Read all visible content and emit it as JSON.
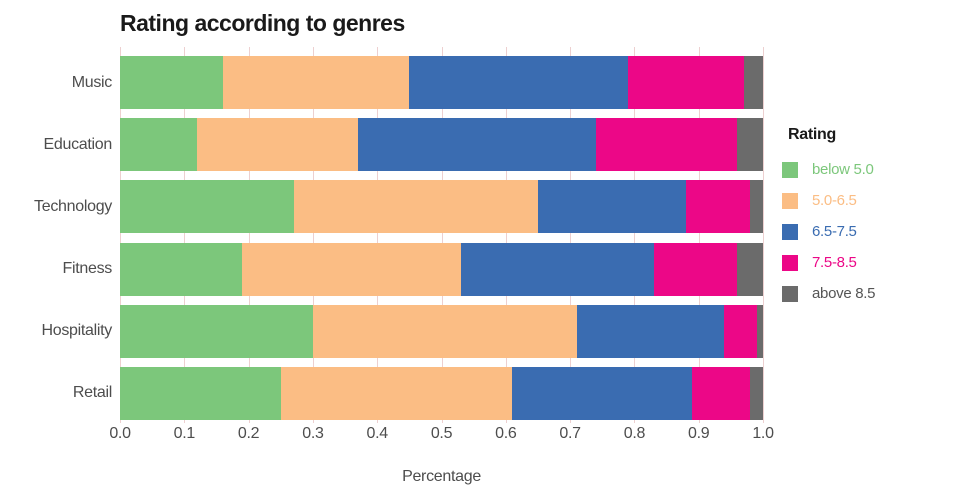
{
  "title": "Rating according to genres",
  "xlabel": "Percentage",
  "legend": {
    "title": "Rating",
    "items": [
      {
        "label": "below 5.0",
        "color": "#7CC77B",
        "text_color": "#7CC77B"
      },
      {
        "label": "5.0-6.5",
        "color": "#FBBD84",
        "text_color": "#FBBD84"
      },
      {
        "label": "6.5-7.5",
        "color": "#3A6CB1",
        "text_color": "#3A6CB1"
      },
      {
        "label": "7.5-8.5",
        "color": "#EC0787",
        "text_color": "#EC0787"
      },
      {
        "label": "above 8.5",
        "color": "#6B6B6B",
        "text_color": "#555555"
      }
    ]
  },
  "chart_data": {
    "type": "bar",
    "orientation": "horizontal",
    "stacked": true,
    "title": "Rating according to genres",
    "xlabel": "Percentage",
    "ylabel": "",
    "categories": [
      "Music",
      "Education",
      "Technology",
      "Fitness",
      "Hospitality",
      "Retail"
    ],
    "series": [
      {
        "name": "below 5.0",
        "color": "#7CC77B",
        "values": [
          0.16,
          0.12,
          0.27,
          0.19,
          0.3,
          0.25
        ]
      },
      {
        "name": "5.0-6.5",
        "color": "#FBBD84",
        "values": [
          0.29,
          0.25,
          0.38,
          0.34,
          0.41,
          0.36
        ]
      },
      {
        "name": "6.5-7.5",
        "color": "#3A6CB1",
        "values": [
          0.34,
          0.37,
          0.23,
          0.3,
          0.23,
          0.28
        ]
      },
      {
        "name": "7.5-8.5",
        "color": "#EC0787",
        "values": [
          0.18,
          0.22,
          0.1,
          0.13,
          0.05,
          0.09
        ]
      },
      {
        "name": "above 8.5",
        "color": "#6B6B6B",
        "values": [
          0.03,
          0.04,
          0.02,
          0.04,
          0.01,
          0.02
        ]
      }
    ],
    "xlim": [
      0,
      1
    ],
    "xticks": [
      "0.0",
      "0.1",
      "0.2",
      "0.3",
      "0.4",
      "0.5",
      "0.6",
      "0.7",
      "0.8",
      "0.9",
      "1.0"
    ],
    "grid": true,
    "legend_title": "Rating",
    "legend_position": "right"
  },
  "colors": {
    "background": "#FFFFFF",
    "grid": "#EDD0D0",
    "axis_text": "#4D4D4D",
    "title_text": "#1A1A1A"
  }
}
